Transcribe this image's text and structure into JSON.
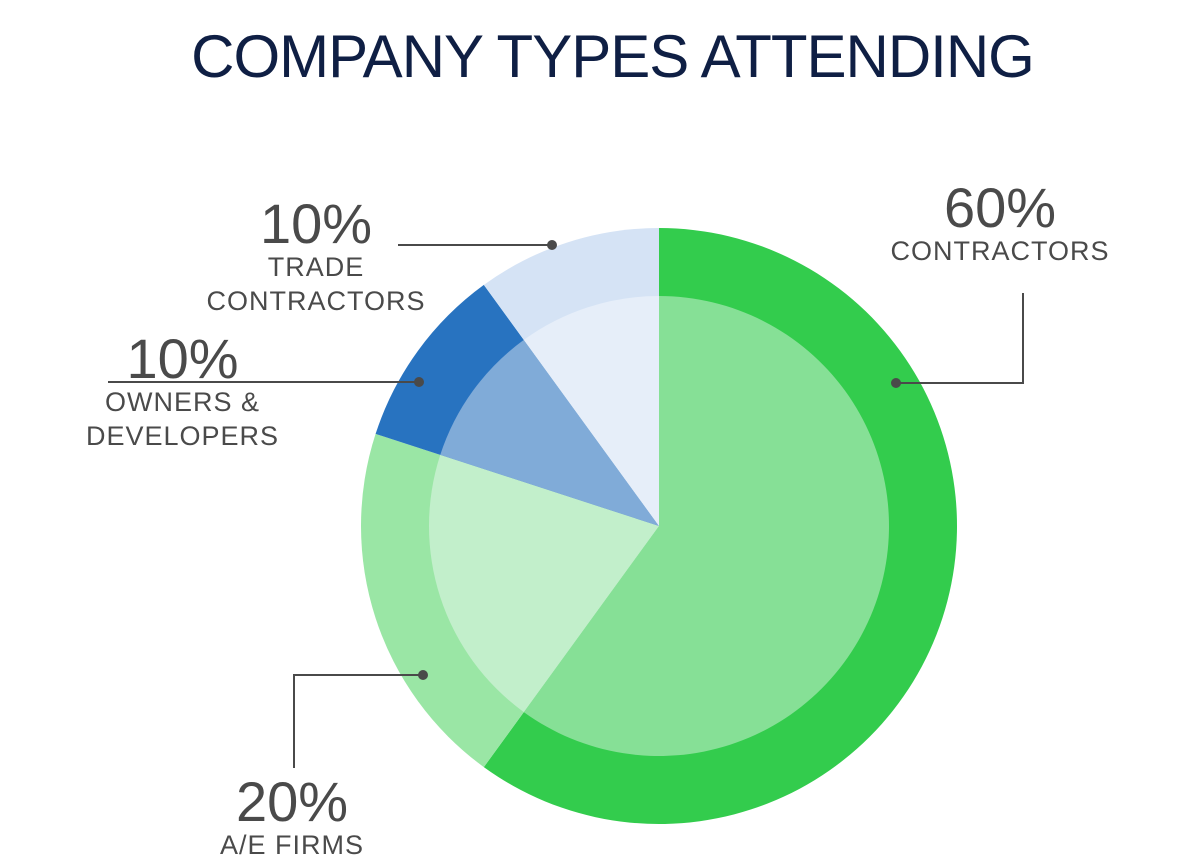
{
  "chart_data": {
    "type": "pie",
    "title": "COMPANY TYPES ATTENDING",
    "slices": [
      {
        "label": "CONTRACTORS",
        "value": 60,
        "value_label": "60%",
        "outer_color": "#33cc4d",
        "inner_color": "#86e096"
      },
      {
        "label": "A/E FIRMS",
        "value": 20,
        "value_label": "20%",
        "outer_color": "#9ae6a5",
        "inner_color": "#c2efcb"
      },
      {
        "label": "OWNERS & DEVELOPERS",
        "label_lines": [
          "OWNERS &",
          "DEVELOPERS"
        ],
        "value": 10,
        "value_label": "10%",
        "outer_color": "#2873c0",
        "inner_color": "#80abd8"
      },
      {
        "label": "TRADE CONTRACTORS",
        "label_lines": [
          "TRADE",
          "CONTRACTORS"
        ],
        "value": 10,
        "value_label": "10%",
        "outer_color": "#d5e3f5",
        "inner_color": "#e6eef9"
      }
    ]
  },
  "colors": {
    "title": "#0f1f44",
    "label_text": "#4a4a4a",
    "leader_line": "#4a4a4a"
  }
}
